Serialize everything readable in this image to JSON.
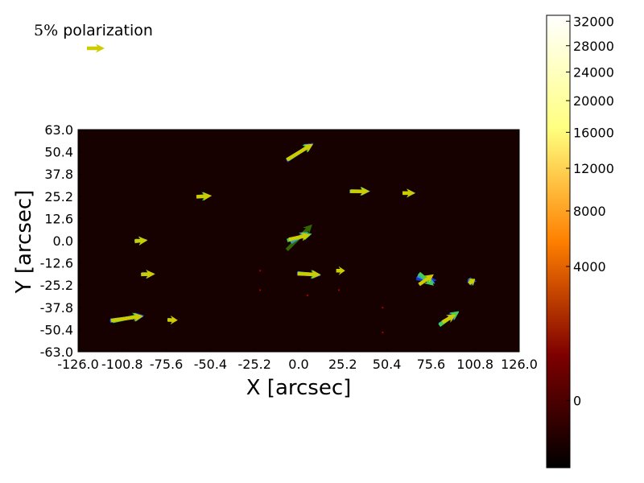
{
  "chart_data": {
    "type": "vector-field",
    "xlabel": "X [arcsec]",
    "ylabel": "Y [arcsec]",
    "xlim": [
      -126.0,
      126.0
    ],
    "ylim": [
      -63.0,
      63.0
    ],
    "xticks": [
      "-126.0",
      "-100.8",
      "-75.6",
      "-50.4",
      "-25.2",
      "0.0",
      "25.2",
      "50.4",
      "75.6",
      "100.8",
      "126.0"
    ],
    "yticks": [
      "63.0",
      "50.4",
      "37.8",
      "25.2",
      "12.6",
      "0.0",
      "-12.6",
      "-25.2",
      "-37.8",
      "-50.4",
      "-63.0"
    ],
    "legend": {
      "label_math": "5%",
      "label_text": " polarization",
      "arrow_color": "#cccc00"
    },
    "colorbar": {
      "ticks": [
        "32000",
        "28000",
        "24000",
        "20000",
        "16000",
        "12000",
        "8000",
        "4000",
        "0"
      ],
      "tick_values": [
        32000,
        28000,
        24000,
        20000,
        16000,
        12000,
        8000,
        4000,
        0
      ],
      "min": -1000,
      "max": 33000,
      "colormap": "afmhot"
    },
    "background_color": "#160000",
    "series_colors": [
      "#2233cc",
      "#3399cc",
      "#44cc55",
      "#336600",
      "#cccc00"
    ],
    "vector_groups": [
      {
        "x": 0.8,
        "y": 50.4,
        "arrows": [
          {
            "color": "#2233cc",
            "len": 25,
            "ang": 34
          },
          {
            "color": "#3399cc",
            "len": 23,
            "ang": 32
          },
          {
            "color": "#44cc55",
            "len": 22,
            "ang": 33
          },
          {
            "color": "#cccc00",
            "len": 24,
            "ang": 31
          }
        ]
      },
      {
        "x": -54.0,
        "y": 25.2,
        "arrows": [
          {
            "color": "#2233cc",
            "len": 12,
            "ang": 5
          },
          {
            "color": "#44cc55",
            "len": 10,
            "ang": 3
          },
          {
            "color": "#cccc00",
            "len": 12,
            "ang": 4
          }
        ]
      },
      {
        "x": 35.0,
        "y": 28.0,
        "arrows": [
          {
            "color": "#3399cc",
            "len": 16,
            "ang": 0
          },
          {
            "color": "#44cc55",
            "len": 14,
            "ang": -2
          },
          {
            "color": "#cccc00",
            "len": 15,
            "ang": 0
          }
        ]
      },
      {
        "x": 63.0,
        "y": 27.0,
        "arrows": [
          {
            "color": "#3399cc",
            "len": 10,
            "ang": 0
          },
          {
            "color": "#44cc55",
            "len": 9,
            "ang": 2
          },
          {
            "color": "#cccc00",
            "len": 10,
            "ang": 0
          }
        ]
      },
      {
        "x": 0.5,
        "y": 2.0,
        "arrows": [
          {
            "color": "#336600",
            "len": 28,
            "ang": 45
          },
          {
            "color": "#3399cc",
            "len": 16,
            "ang": 30
          },
          {
            "color": "#44cc55",
            "len": 20,
            "ang": 15
          },
          {
            "color": "#cccc00",
            "len": 17,
            "ang": 12
          }
        ]
      },
      {
        "x": -90.0,
        "y": 0.0,
        "arrows": [
          {
            "color": "#3399cc",
            "len": 10,
            "ang": 8
          },
          {
            "color": "#44cc55",
            "len": 9,
            "ang": 0
          },
          {
            "color": "#cccc00",
            "len": 10,
            "ang": 4
          }
        ]
      },
      {
        "x": -86.0,
        "y": -19.0,
        "arrows": [
          {
            "color": "#2233cc",
            "len": 10,
            "ang": -5
          },
          {
            "color": "#44cc55",
            "len": 9,
            "ang": 0
          },
          {
            "color": "#cccc00",
            "len": 11,
            "ang": 2
          }
        ]
      },
      {
        "x": 6.0,
        "y": -19.0,
        "arrows": [
          {
            "color": "#2233cc",
            "len": 19,
            "ang": -4
          },
          {
            "color": "#3399cc",
            "len": 18,
            "ang": -6
          },
          {
            "color": "#44cc55",
            "len": 16,
            "ang": -3
          },
          {
            "color": "#cccc00",
            "len": 18,
            "ang": -2
          }
        ]
      },
      {
        "x": 24.0,
        "y": -17.0,
        "arrows": [
          {
            "color": "#44cc55",
            "len": 6,
            "ang": 2
          },
          {
            "color": "#cccc00",
            "len": 7,
            "ang": 0
          }
        ]
      },
      {
        "x": 73.0,
        "y": -22.0,
        "arrows": [
          {
            "color": "#2233cc",
            "len": 16,
            "ang": -5
          },
          {
            "color": "#3399cc",
            "len": 15,
            "ang": -25
          },
          {
            "color": "#44cc55",
            "len": 15,
            "ang": -40
          },
          {
            "color": "#cccc00",
            "len": 14,
            "ang": 35
          }
        ]
      },
      {
        "x": 99.0,
        "y": -23.0,
        "arrows": [
          {
            "color": "#2233cc",
            "len": 7,
            "ang": 0
          },
          {
            "color": "#3399cc",
            "len": 6,
            "ang": 30
          },
          {
            "color": "#44cc55",
            "len": 5,
            "ang": 15
          },
          {
            "color": "#cccc00",
            "len": 6,
            "ang": 40
          }
        ]
      },
      {
        "x": -98.0,
        "y": -44.0,
        "arrows": [
          {
            "color": "#2233cc",
            "len": 27,
            "ang": 10
          },
          {
            "color": "#3399cc",
            "len": 26,
            "ang": 7
          },
          {
            "color": "#44cc55",
            "len": 23,
            "ang": 12
          },
          {
            "color": "#cccc00",
            "len": 25,
            "ang": 8
          }
        ]
      },
      {
        "x": -72.0,
        "y": -45.0,
        "arrows": [
          {
            "color": "#44cc55",
            "len": 7,
            "ang": 0
          },
          {
            "color": "#cccc00",
            "len": 8,
            "ang": -2
          }
        ]
      },
      {
        "x": 86.0,
        "y": -44.0,
        "arrows": [
          {
            "color": "#2233cc",
            "len": 16,
            "ang": 34
          },
          {
            "color": "#3399cc",
            "len": 18,
            "ang": 32
          },
          {
            "color": "#44cc55",
            "len": 19,
            "ang": 36
          },
          {
            "color": "#cccc00",
            "len": 12,
            "ang": 30
          }
        ]
      }
    ],
    "background_spots": [
      {
        "x": -22.0,
        "y": -17.0,
        "value": 2500
      },
      {
        "x": -22.0,
        "y": -28.0,
        "value": 2500
      },
      {
        "x": 5.0,
        "y": -31.0,
        "value": 3000
      },
      {
        "x": 48.0,
        "y": -38.0,
        "value": 1200
      },
      {
        "x": 48.0,
        "y": -52.0,
        "value": 1200
      },
      {
        "x": 23.0,
        "y": -28.0,
        "value": 1200
      }
    ]
  }
}
